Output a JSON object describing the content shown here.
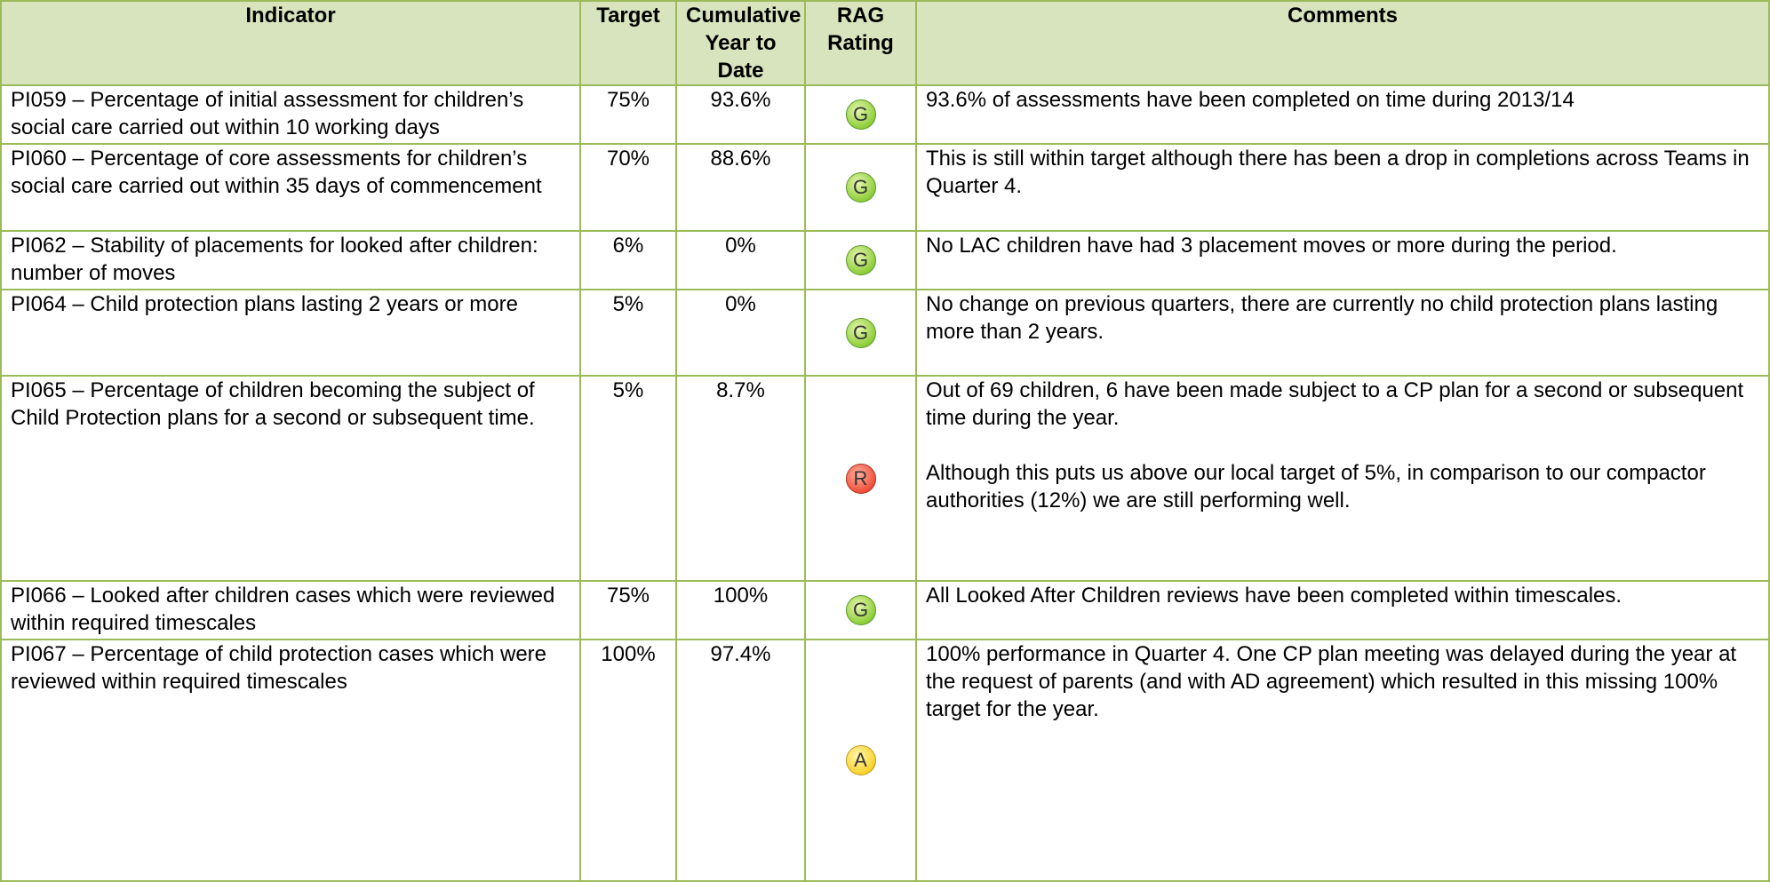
{
  "table": {
    "header": [
      "Indicator",
      "Target",
      "Cumulative Year to Date",
      "RAG Rating",
      "Comments"
    ],
    "rows": [
      {
        "indicator": "PI059 – Percentage of initial assessment for children’s social care carried out within 10 working days",
        "target": "75%",
        "cumulative": "93.6%",
        "rag": "G",
        "comments": [
          "93.6% of assessments have been completed on time during 2013/14"
        ]
      },
      {
        "indicator": "PI060 – Percentage of core assessments for children’s social care carried out within 35 days of commencement",
        "target": "70%",
        "cumulative": "88.6%",
        "rag": "G",
        "comments": [
          "This is still within target although there has been a drop in completions across Teams in Quarter 4."
        ]
      },
      {
        "indicator": "PI062 – Stability of placements for looked after children: number of moves",
        "target": "6%",
        "cumulative": "0%",
        "rag": "G",
        "comments": [
          "No LAC children have had 3 placement moves or more during the period."
        ]
      },
      {
        "indicator": "PI064 – Child protection plans lasting 2 years or more",
        "target": "5%",
        "cumulative": "0%",
        "rag": "G",
        "comments": [
          "No change on previous quarters, there are currently no child protection plans lasting more than 2 years."
        ]
      },
      {
        "indicator": "PI065 – Percentage of children becoming the subject of Child Protection plans for a second or subsequent time.",
        "target": "5%",
        "cumulative": "8.7%",
        "rag": "R",
        "comments": [
          "Out of 69 children, 6 have been made subject to a CP plan for a second or subsequent time during the year.",
          "Although this puts us above our local target of 5%, in comparison to our compactor authorities (12%) we are still performing well."
        ]
      },
      {
        "indicator": "PI066 – Looked after children cases which were reviewed within required timescales",
        "target": "75%",
        "cumulative": "100%",
        "rag": "G",
        "comments": [
          "All Looked After Children reviews have been completed within timescales."
        ]
      },
      {
        "indicator": "PI067 – Percentage of child protection cases which were reviewed within required timescales",
        "target": "100%",
        "cumulative": "97.4%",
        "rag": "A",
        "comments": [
          "100% performance in Quarter 4. One CP plan meeting was delayed during the year at the request of parents (and with AD agreement) which resulted in this missing 100% target for the year."
        ]
      }
    ]
  }
}
